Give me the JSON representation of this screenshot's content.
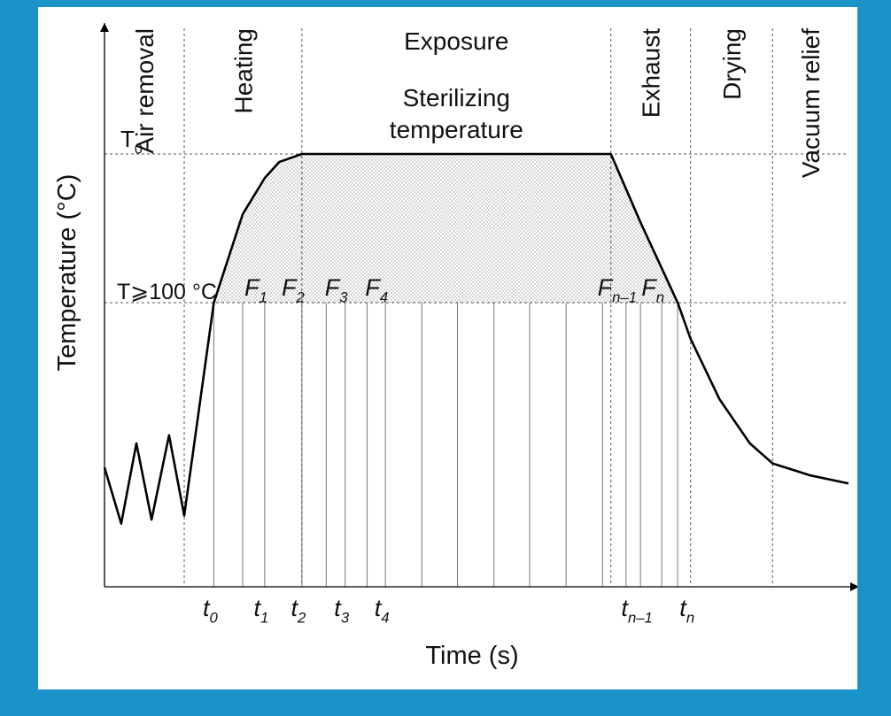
{
  "colors": {
    "frame": "#1a94c8",
    "panel": "#ffffff",
    "curve": "#000000",
    "fill": "#b9b9b9"
  },
  "chart_data": {
    "type": "line",
    "xlabel": "Time (s)",
    "ylabel": "Temperature (°C)",
    "phases": [
      {
        "label": "Air removal",
        "start": 0.0,
        "end": 1.05
      },
      {
        "label": "Heating",
        "start": 1.05,
        "end": 2.6
      },
      {
        "label": "Exposure",
        "start": 2.6,
        "end": 6.67
      },
      {
        "label": "Exhaust",
        "start": 6.67,
        "end": 7.72
      },
      {
        "label": "Drying",
        "start": 7.72,
        "end": 8.8
      },
      {
        "label": "Vacuum relief",
        "start": 8.8,
        "end": 9.8
      }
    ],
    "plateau_label_line1": "Sterilizing",
    "plateau_label_line2": "temperature",
    "levels": [
      {
        "label": "T",
        "sub": "0",
        "value": 100
      },
      {
        "label": "T⩾100 °C",
        "sub": "",
        "value": 63
      }
    ],
    "ticks": [
      {
        "label": "t",
        "sub": "0",
        "x": 1.44
      },
      {
        "label": "t",
        "sub": "1",
        "x": 2.11
      },
      {
        "label": "t",
        "sub": "2",
        "x": 2.6
      },
      {
        "label": "t",
        "sub": "3",
        "x": 3.17
      },
      {
        "label": "t",
        "sub": "4",
        "x": 3.7
      },
      {
        "label": "t",
        "sub": "n–1",
        "x": 7.06
      },
      {
        "label": "t",
        "sub": "n",
        "x": 7.72
      }
    ],
    "f_labels": [
      {
        "label": "F",
        "sub": "1",
        "x": 2.11
      },
      {
        "label": "F",
        "sub": "2",
        "x": 2.6
      },
      {
        "label": "F",
        "sub": "3",
        "x": 3.17
      },
      {
        "label": "F",
        "sub": "4",
        "x": 3.7
      },
      {
        "label": "F",
        "sub": "n–1",
        "x": 6.87
      },
      {
        "label": "F",
        "sub": "n",
        "x": 7.34
      }
    ],
    "grid_lines_x": [
      1.44,
      1.82,
      2.11,
      2.6,
      2.92,
      3.17,
      3.46,
      3.7,
      4.18,
      4.65,
      5.13,
      5.6,
      6.08,
      6.56,
      6.87,
      7.06,
      7.34,
      7.55
    ],
    "curve": {
      "x": [
        0.0,
        0.22,
        0.42,
        0.62,
        0.85,
        1.05,
        1.44,
        1.82,
        2.11,
        2.3,
        2.6,
        6.67,
        7.06,
        7.55,
        7.72,
        8.1,
        8.5,
        8.8,
        9.3,
        9.8
      ],
      "y": [
        22,
        8,
        28,
        9,
        30,
        10,
        63,
        85,
        94,
        98,
        100,
        100,
        83,
        63,
        54,
        39,
        28,
        23,
        20,
        18
      ]
    },
    "xlim": [
      0,
      9.8
    ],
    "ylim": [
      0,
      100
    ],
    "grid": false,
    "legend": "none"
  }
}
